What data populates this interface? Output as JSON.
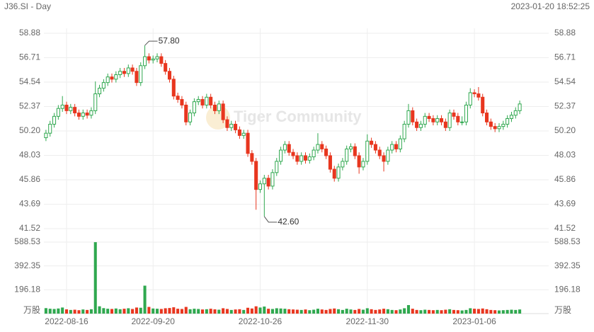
{
  "header": {
    "symbol": "J36.SI - Day",
    "timestamp": "2023-01-20 18:52:25"
  },
  "watermark": "Tiger Community",
  "chart_data": [
    {
      "type": "candlestick",
      "categories": [
        null,
        null,
        null,
        null,
        null,
        "2022-08-16",
        null,
        null,
        null,
        null,
        null,
        null,
        null,
        null,
        null,
        null,
        null,
        null,
        null,
        null,
        null,
        null,
        null,
        null,
        null,
        null,
        "2022-09-20",
        null,
        null,
        null,
        null,
        null,
        null,
        null,
        null,
        null,
        null,
        null,
        null,
        null,
        null,
        null,
        null,
        null,
        null,
        null,
        null,
        null,
        null,
        null,
        null,
        null,
        "2022-10-26",
        null,
        null,
        null,
        null,
        null,
        null,
        null,
        null,
        null,
        null,
        null,
        null,
        null,
        null,
        null,
        null,
        null,
        null,
        null,
        null,
        null,
        null,
        null,
        null,
        null,
        "2022-11-30",
        null,
        null,
        null,
        null,
        null,
        null,
        null,
        null,
        null,
        null,
        null,
        null,
        null,
        null,
        null,
        null,
        null,
        null,
        null,
        null,
        null,
        null,
        null,
        null,
        null,
        "2023-01-06",
        null,
        null,
        null,
        null,
        null,
        null,
        null,
        null,
        null,
        null,
        null
      ],
      "open": [
        49.6,
        50.0,
        50.8,
        51.5,
        52.2,
        52.5,
        52.0,
        52.3,
        51.8,
        51.5,
        51.8,
        51.6,
        52.0,
        53.5,
        54.0,
        54.5,
        55.0,
        54.8,
        55.2,
        55.5,
        55.3,
        55.8,
        55.5,
        54.5,
        56.0,
        56.8,
        56.5,
        56.6,
        56.8,
        56.2,
        55.5,
        54.8,
        53.3,
        53.0,
        52.5,
        51.0,
        51.8,
        52.8,
        53.0,
        52.5,
        53.2,
        52.5,
        52.0,
        52.6,
        51.2,
        50.5,
        50.8,
        50.3,
        49.8,
        50.0,
        48.2,
        47.5,
        45.0,
        45.5,
        46.0,
        45.3,
        46.5,
        47.5,
        48.5,
        49.0,
        48.3,
        48.0,
        47.5,
        48.0,
        47.6,
        47.9,
        48.5,
        49.0,
        48.6,
        48.0,
        46.8,
        46.0,
        47.0,
        47.5,
        48.6,
        48.8,
        48.0,
        47.0,
        47.5,
        49.3,
        49.0,
        48.5,
        48.0,
        47.5,
        48.5,
        49.0,
        48.6,
        49.5,
        50.8,
        52.0,
        51.0,
        50.5,
        50.8,
        51.5,
        51.3,
        51.0,
        51.3,
        51.0,
        50.5,
        51.8,
        51.5,
        51.0,
        51.0,
        52.5,
        53.6,
        53.5,
        53.2,
        51.8,
        51.0,
        50.6,
        50.4,
        50.6,
        50.8,
        51.3,
        51.6,
        52.0
      ],
      "high": [
        50.3,
        51.1,
        51.8,
        52.5,
        53.3,
        52.8,
        52.6,
        52.6,
        52.1,
        52.1,
        52.1,
        52.3,
        54.6,
        54.3,
        54.8,
        55.3,
        55.3,
        55.5,
        55.8,
        55.8,
        56.1,
        56.1,
        55.8,
        56.3,
        57.8,
        57.1,
        56.9,
        57.1,
        57.1,
        56.5,
        55.8,
        55.1,
        53.6,
        53.3,
        52.8,
        52.1,
        53.1,
        53.3,
        53.3,
        53.5,
        53.5,
        52.8,
        52.9,
        52.9,
        51.5,
        51.1,
        51.1,
        50.6,
        50.3,
        50.3,
        48.5,
        47.8,
        45.8,
        46.3,
        46.3,
        46.8,
        47.8,
        48.8,
        49.3,
        49.3,
        48.6,
        48.3,
        48.3,
        48.3,
        48.2,
        48.8,
        50.0,
        49.3,
        48.9,
        48.3,
        47.1,
        47.3,
        47.8,
        48.9,
        49.1,
        49.1,
        48.3,
        47.8,
        49.9,
        49.6,
        49.3,
        48.8,
        48.3,
        48.8,
        49.3,
        49.3,
        49.8,
        51.1,
        52.6,
        52.3,
        51.3,
        51.1,
        51.8,
        51.8,
        51.6,
        51.6,
        51.6,
        51.3,
        52.1,
        52.1,
        51.8,
        51.5,
        52.8,
        54.0,
        53.9,
        54.1,
        53.5,
        52.1,
        51.3,
        50.9,
        50.9,
        51.1,
        51.6,
        51.9,
        52.3,
        52.9
      ],
      "low": [
        49.3,
        49.7,
        50.5,
        51.2,
        51.9,
        51.7,
        51.7,
        51.5,
        51.2,
        51.2,
        51.3,
        51.3,
        51.7,
        53.2,
        53.7,
        54.2,
        54.5,
        54.5,
        54.9,
        55.0,
        55.0,
        55.2,
        54.2,
        54.2,
        55.7,
        56.2,
        56.2,
        56.3,
        55.9,
        55.2,
        54.5,
        53.0,
        52.7,
        52.2,
        50.7,
        50.7,
        51.5,
        52.5,
        52.2,
        52.2,
        52.2,
        51.7,
        51.7,
        50.9,
        50.2,
        50.2,
        50.0,
        49.5,
        49.5,
        47.9,
        47.2,
        43.2,
        44.7,
        42.6,
        45.0,
        45.0,
        46.2,
        47.2,
        48.2,
        48.0,
        47.7,
        47.2,
        47.2,
        47.3,
        47.3,
        47.6,
        48.2,
        48.3,
        47.7,
        46.5,
        45.7,
        45.7,
        46.7,
        47.2,
        48.3,
        47.7,
        46.4,
        46.7,
        47.2,
        48.7,
        48.2,
        47.7,
        46.6,
        47.2,
        48.2,
        48.3,
        48.3,
        49.2,
        50.5,
        50.7,
        50.2,
        50.2,
        50.5,
        51.0,
        50.7,
        50.7,
        50.7,
        50.2,
        50.2,
        51.2,
        50.7,
        50.7,
        50.7,
        52.2,
        53.2,
        52.9,
        51.5,
        50.7,
        50.3,
        50.1,
        50.1,
        50.3,
        50.5,
        51.0,
        51.3,
        51.7
      ],
      "close": [
        50.0,
        50.8,
        51.5,
        52.2,
        52.5,
        52.0,
        52.3,
        51.8,
        51.5,
        51.8,
        51.6,
        52.0,
        53.5,
        54.0,
        54.5,
        55.0,
        54.8,
        55.2,
        55.5,
        55.3,
        55.8,
        55.5,
        54.5,
        56.0,
        56.8,
        56.5,
        56.6,
        56.8,
        56.2,
        55.5,
        54.8,
        53.3,
        53.0,
        52.5,
        51.0,
        51.8,
        52.8,
        53.0,
        52.5,
        53.2,
        52.5,
        52.0,
        52.6,
        51.2,
        50.5,
        50.8,
        50.3,
        49.8,
        50.0,
        48.2,
        47.5,
        45.0,
        45.5,
        46.0,
        45.3,
        46.5,
        47.5,
        48.5,
        49.0,
        48.3,
        48.0,
        47.5,
        48.0,
        47.6,
        47.9,
        48.5,
        49.0,
        48.6,
        48.0,
        46.8,
        46.0,
        47.0,
        47.5,
        48.6,
        48.8,
        48.0,
        47.0,
        47.5,
        49.3,
        49.0,
        48.5,
        48.0,
        47.5,
        48.5,
        49.0,
        48.6,
        49.5,
        50.8,
        52.0,
        51.0,
        50.5,
        50.8,
        51.5,
        51.3,
        51.0,
        51.3,
        51.0,
        50.5,
        51.8,
        51.5,
        51.0,
        51.0,
        52.5,
        53.6,
        53.5,
        53.2,
        51.8,
        51.0,
        50.6,
        50.4,
        50.6,
        50.8,
        51.3,
        51.6,
        52.0,
        52.6
      ],
      "max_label": "57.80",
      "min_label": "42.60",
      "up_color": "#2fa84f",
      "down_color": "#e8361f",
      "ylim": [
        41.52,
        58.88
      ],
      "yticks": [
        41.52,
        43.69,
        45.86,
        48.03,
        50.2,
        52.37,
        54.54,
        56.71,
        58.88
      ],
      "ytick_labels": [
        "41.52",
        "43.69",
        "45.86",
        "48.03",
        "50.20",
        "52.37",
        "54.54",
        "56.71",
        "58.88"
      ]
    },
    {
      "type": "volume",
      "values": [
        45,
        40,
        38,
        42,
        50,
        35,
        30,
        32,
        28,
        34,
        30,
        36,
        588,
        60,
        45,
        40,
        38,
        42,
        36,
        40,
        44,
        38,
        50,
        48,
        230,
        55,
        42,
        40,
        38,
        44,
        46,
        52,
        40,
        38,
        55,
        36,
        40,
        38,
        34,
        36,
        40,
        35,
        32,
        44,
        38,
        30,
        34,
        36,
        30,
        48,
        42,
        60,
        50,
        58,
        40,
        38,
        44,
        42,
        40,
        36,
        34,
        32,
        30,
        34,
        28,
        32,
        40,
        34,
        30,
        38,
        42,
        36,
        30,
        40,
        34,
        30,
        38,
        32,
        44,
        36,
        30,
        34,
        40,
        36,
        30,
        28,
        34,
        44,
        70,
        40,
        30,
        28,
        32,
        30,
        28,
        30,
        28,
        32,
        36,
        30,
        28,
        26,
        30,
        44,
        40,
        38,
        42,
        36,
        30,
        28,
        26,
        28,
        30,
        32,
        30,
        34
      ],
      "ylim": [
        0,
        588.53
      ],
      "yticks": [
        196.18,
        392.35,
        588.53
      ],
      "unit": "万股"
    }
  ]
}
